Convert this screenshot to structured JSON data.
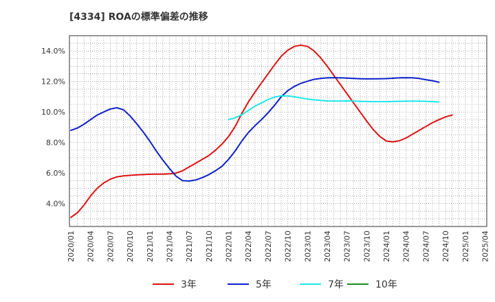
{
  "chart_data": {
    "type": "line",
    "title": "[4334]  ROAの標準偏差の推移",
    "xlabel": "",
    "ylabel": "",
    "ylim": [
      2.5,
      15.0
    ],
    "yticks": [
      4.0,
      6.0,
      8.0,
      10.0,
      12.0,
      14.0
    ],
    "ytick_labels": [
      "4.0%",
      "6.0%",
      "8.0%",
      "10.0%",
      "12.0%",
      "14.0%"
    ],
    "xticks": [
      "2020/01",
      "2020/04",
      "2020/07",
      "2020/10",
      "2021/01",
      "2021/04",
      "2021/07",
      "2021/10",
      "2022/01",
      "2022/04",
      "2022/07",
      "2022/10",
      "2023/01",
      "2023/04",
      "2023/07",
      "2023/10",
      "2024/01",
      "2024/04",
      "2024/07",
      "2024/10",
      "2025/01",
      "2025/04"
    ],
    "grid": true,
    "legend_position": "bottom",
    "series": [
      {
        "name": "3年",
        "color": "#dd1111",
        "points": [
          [
            "2020/01",
            3.1
          ],
          [
            "2020/02",
            3.4
          ],
          [
            "2020/03",
            3.9
          ],
          [
            "2020/04",
            4.5
          ],
          [
            "2020/05",
            5.0
          ],
          [
            "2020/06",
            5.35
          ],
          [
            "2020/07",
            5.6
          ],
          [
            "2020/08",
            5.75
          ],
          [
            "2020/09",
            5.82
          ],
          [
            "2020/10",
            5.85
          ],
          [
            "2020/11",
            5.88
          ],
          [
            "2020/12",
            5.9
          ],
          [
            "2021/01",
            5.92
          ],
          [
            "2021/02",
            5.93
          ],
          [
            "2021/03",
            5.93
          ],
          [
            "2021/04",
            5.95
          ],
          [
            "2021/05",
            6.0
          ],
          [
            "2021/06",
            6.15
          ],
          [
            "2021/07",
            6.4
          ],
          [
            "2021/08",
            6.65
          ],
          [
            "2021/09",
            6.9
          ],
          [
            "2021/10",
            7.15
          ],
          [
            "2021/11",
            7.5
          ],
          [
            "2021/12",
            7.9
          ],
          [
            "2022/01",
            8.4
          ],
          [
            "2022/02",
            9.05
          ],
          [
            "2022/03",
            9.9
          ],
          [
            "2022/04",
            10.65
          ],
          [
            "2022/05",
            11.3
          ],
          [
            "2022/06",
            11.9
          ],
          [
            "2022/07",
            12.5
          ],
          [
            "2022/08",
            13.1
          ],
          [
            "2022/09",
            13.65
          ],
          [
            "2022/10",
            14.05
          ],
          [
            "2022/11",
            14.3
          ],
          [
            "2022/12",
            14.38
          ],
          [
            "2023/01",
            14.3
          ],
          [
            "2023/02",
            14.0
          ],
          [
            "2023/03",
            13.55
          ],
          [
            "2023/04",
            13.0
          ],
          [
            "2023/05",
            12.4
          ],
          [
            "2023/06",
            11.8
          ],
          [
            "2023/07",
            11.2
          ],
          [
            "2023/08",
            10.6
          ],
          [
            "2023/09",
            10.0
          ],
          [
            "2023/10",
            9.4
          ],
          [
            "2023/11",
            8.85
          ],
          [
            "2023/12",
            8.4
          ],
          [
            "2024/01",
            8.1
          ],
          [
            "2024/02",
            8.05
          ],
          [
            "2024/03",
            8.12
          ],
          [
            "2024/04",
            8.3
          ],
          [
            "2024/05",
            8.55
          ],
          [
            "2024/06",
            8.8
          ],
          [
            "2024/07",
            9.05
          ],
          [
            "2024/08",
            9.3
          ],
          [
            "2024/09",
            9.5
          ],
          [
            "2024/10",
            9.68
          ],
          [
            "2024/11",
            9.8
          ]
        ]
      },
      {
        "name": "5年",
        "color": "#0a1fc8",
        "points": [
          [
            "2020/01",
            8.8
          ],
          [
            "2020/02",
            8.95
          ],
          [
            "2020/03",
            9.2
          ],
          [
            "2020/04",
            9.5
          ],
          [
            "2020/05",
            9.8
          ],
          [
            "2020/06",
            10.0
          ],
          [
            "2020/07",
            10.2
          ],
          [
            "2020/08",
            10.28
          ],
          [
            "2020/09",
            10.15
          ],
          [
            "2020/10",
            9.75
          ],
          [
            "2020/11",
            9.25
          ],
          [
            "2020/12",
            8.7
          ],
          [
            "2021/01",
            8.1
          ],
          [
            "2021/02",
            7.45
          ],
          [
            "2021/03",
            6.85
          ],
          [
            "2021/04",
            6.3
          ],
          [
            "2021/05",
            5.8
          ],
          [
            "2021/06",
            5.5
          ],
          [
            "2021/07",
            5.48
          ],
          [
            "2021/08",
            5.55
          ],
          [
            "2021/09",
            5.7
          ],
          [
            "2021/10",
            5.9
          ],
          [
            "2021/11",
            6.15
          ],
          [
            "2021/12",
            6.45
          ],
          [
            "2022/01",
            6.9
          ],
          [
            "2022/02",
            7.45
          ],
          [
            "2022/03",
            8.1
          ],
          [
            "2022/04",
            8.65
          ],
          [
            "2022/05",
            9.1
          ],
          [
            "2022/06",
            9.5
          ],
          [
            "2022/07",
            9.95
          ],
          [
            "2022/08",
            10.45
          ],
          [
            "2022/09",
            11.0
          ],
          [
            "2022/10",
            11.4
          ],
          [
            "2022/11",
            11.68
          ],
          [
            "2022/12",
            11.88
          ],
          [
            "2023/01",
            12.02
          ],
          [
            "2023/02",
            12.14
          ],
          [
            "2023/03",
            12.2
          ],
          [
            "2023/04",
            12.24
          ],
          [
            "2023/05",
            12.25
          ],
          [
            "2023/06",
            12.24
          ],
          [
            "2023/07",
            12.22
          ],
          [
            "2023/08",
            12.2
          ],
          [
            "2023/09",
            12.18
          ],
          [
            "2023/10",
            12.17
          ],
          [
            "2023/11",
            12.17
          ],
          [
            "2023/12",
            12.18
          ],
          [
            "2024/01",
            12.19
          ],
          [
            "2024/02",
            12.21
          ],
          [
            "2024/03",
            12.24
          ],
          [
            "2024/04",
            12.25
          ],
          [
            "2024/05",
            12.24
          ],
          [
            "2024/06",
            12.2
          ],
          [
            "2024/07",
            12.12
          ],
          [
            "2024/08",
            12.05
          ],
          [
            "2024/09",
            11.95
          ]
        ]
      },
      {
        "name": "7年",
        "color": "#1fe6e6",
        "points": [
          [
            "2022/01",
            9.5
          ],
          [
            "2022/02",
            9.62
          ],
          [
            "2022/03",
            9.82
          ],
          [
            "2022/04",
            10.1
          ],
          [
            "2022/05",
            10.38
          ],
          [
            "2022/06",
            10.6
          ],
          [
            "2022/07",
            10.82
          ],
          [
            "2022/08",
            10.98
          ],
          [
            "2022/09",
            11.06
          ],
          [
            "2022/10",
            11.05
          ],
          [
            "2022/11",
            11.0
          ],
          [
            "2022/12",
            10.92
          ],
          [
            "2023/01",
            10.85
          ],
          [
            "2023/02",
            10.8
          ],
          [
            "2023/03",
            10.76
          ],
          [
            "2023/04",
            10.73
          ],
          [
            "2023/05",
            10.72
          ],
          [
            "2023/06",
            10.72
          ],
          [
            "2023/07",
            10.73
          ],
          [
            "2023/08",
            10.72
          ],
          [
            "2023/09",
            10.7
          ],
          [
            "2023/10",
            10.69
          ],
          [
            "2023/11",
            10.68
          ],
          [
            "2023/12",
            10.68
          ],
          [
            "2024/01",
            10.68
          ],
          [
            "2024/02",
            10.69
          ],
          [
            "2024/03",
            10.7
          ],
          [
            "2024/04",
            10.71
          ],
          [
            "2024/05",
            10.71
          ],
          [
            "2024/06",
            10.71
          ],
          [
            "2024/07",
            10.7
          ],
          [
            "2024/08",
            10.68
          ],
          [
            "2024/09",
            10.66
          ]
        ]
      },
      {
        "name": "10年",
        "color": "#1a8a1a",
        "points": []
      }
    ]
  }
}
